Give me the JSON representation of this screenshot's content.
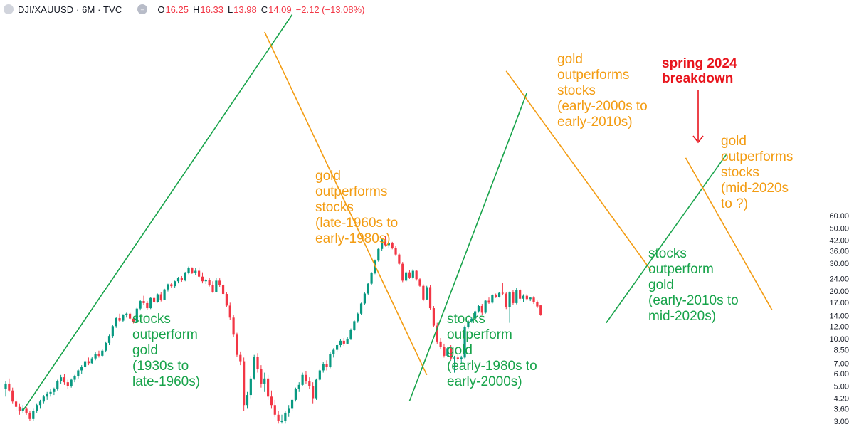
{
  "header": {
    "symbol": "DJI/XAUUSD · 6M · TVC",
    "o_label": "O",
    "o_value": "16.25",
    "h_label": "H",
    "h_value": "16.33",
    "l_label": "L",
    "l_value": "13.98",
    "c_label": "C",
    "c_value": "14.09",
    "change": "−2.12 (−13.08%)"
  },
  "chart_data": {
    "type": "candlestick",
    "title": "DJI/XAUUSD · 6M · TVC",
    "y_scale": "log",
    "ylim": [
      2.9,
      62
    ],
    "y_ticks": [
      "60.00",
      "50.00",
      "42.00",
      "36.00",
      "30.00",
      "24.00",
      "20.00",
      "17.00",
      "14.00",
      "12.00",
      "10.00",
      "8.50",
      "7.00",
      "6.00",
      "5.00",
      "4.20",
      "3.60",
      "3.00"
    ],
    "colors": {
      "up": "#089981",
      "down": "#f23645",
      "orange": "#f39c12",
      "green": "#17a34a",
      "red": "#e8141c"
    },
    "candles": [
      [
        4.8,
        5.4,
        4.3,
        5.2
      ],
      [
        5.2,
        5.6,
        4.6,
        4.7
      ],
      [
        4.7,
        4.9,
        3.9,
        4.0
      ],
      [
        4.0,
        4.2,
        3.5,
        3.7
      ],
      [
        3.7,
        3.9,
        3.3,
        3.5
      ],
      [
        3.5,
        3.8,
        3.4,
        3.6
      ],
      [
        3.6,
        3.7,
        3.3,
        3.4
      ],
      [
        3.4,
        3.5,
        3.0,
        3.1
      ],
      [
        3.1,
        3.6,
        3.0,
        3.5
      ],
      [
        3.5,
        3.9,
        3.4,
        3.8
      ],
      [
        3.8,
        4.1,
        3.6,
        4.0
      ],
      [
        4.0,
        4.4,
        3.9,
        4.3
      ],
      [
        4.3,
        4.6,
        4.1,
        4.5
      ],
      [
        4.5,
        4.8,
        4.3,
        4.6
      ],
      [
        4.6,
        4.9,
        4.4,
        4.8
      ],
      [
        4.8,
        5.5,
        4.7,
        5.4
      ],
      [
        5.4,
        5.9,
        5.2,
        5.7
      ],
      [
        5.7,
        6.0,
        5.1,
        5.3
      ],
      [
        5.3,
        5.5,
        4.8,
        5.0
      ],
      [
        5.0,
        5.6,
        4.9,
        5.5
      ],
      [
        5.5,
        5.9,
        5.3,
        5.8
      ],
      [
        5.8,
        6.4,
        5.6,
        6.3
      ],
      [
        6.3,
        6.8,
        6.0,
        6.6
      ],
      [
        6.6,
        7.3,
        6.4,
        7.2
      ],
      [
        7.2,
        7.6,
        6.8,
        7.0
      ],
      [
        7.0,
        7.7,
        6.9,
        7.5
      ],
      [
        7.5,
        8.2,
        7.3,
        8.0
      ],
      [
        8.0,
        8.4,
        7.6,
        7.8
      ],
      [
        7.8,
        8.6,
        7.7,
        8.4
      ],
      [
        8.4,
        9.6,
        8.2,
        9.4
      ],
      [
        9.4,
        10.6,
        9.1,
        10.4
      ],
      [
        10.4,
        12.2,
        10.1,
        12.0
      ],
      [
        12.0,
        13.7,
        11.7,
        13.5
      ],
      [
        13.5,
        14.4,
        12.7,
        13.0
      ],
      [
        13.0,
        14.3,
        12.7,
        14.1
      ],
      [
        14.1,
        14.6,
        13.6,
        14.4
      ],
      [
        14.4,
        14.7,
        13.1,
        13.4
      ],
      [
        13.4,
        13.6,
        12.5,
        12.8
      ],
      [
        12.8,
        15.7,
        12.7,
        15.5
      ],
      [
        15.5,
        17.6,
        15.1,
        17.3
      ],
      [
        17.3,
        18.7,
        16.4,
        16.8
      ],
      [
        16.8,
        17.3,
        15.3,
        15.6
      ],
      [
        15.6,
        18.3,
        15.4,
        18.1
      ],
      [
        18.1,
        18.4,
        16.8,
        17.1
      ],
      [
        17.1,
        19.3,
        16.9,
        19.1
      ],
      [
        19.1,
        19.8,
        17.2,
        17.6
      ],
      [
        17.6,
        20.7,
        17.5,
        20.5
      ],
      [
        20.5,
        22.3,
        19.9,
        22.1
      ],
      [
        22.1,
        22.6,
        21.1,
        21.5
      ],
      [
        21.5,
        23.3,
        21.0,
        23.1
      ],
      [
        23.1,
        24.6,
        22.4,
        24.3
      ],
      [
        24.3,
        24.9,
        22.9,
        23.5
      ],
      [
        23.5,
        26.5,
        23.1,
        26.2
      ],
      [
        26.2,
        28.6,
        25.6,
        27.9
      ],
      [
        27.9,
        28.3,
        25.7,
        26.2
      ],
      [
        26.2,
        27.9,
        25.4,
        26.9
      ],
      [
        26.9,
        28.3,
        24.3,
        24.7
      ],
      [
        24.7,
        26.3,
        22.4,
        23.1
      ],
      [
        23.1,
        23.9,
        22.2,
        23.4
      ],
      [
        23.4,
        24.2,
        21.4,
        21.8
      ],
      [
        21.8,
        23.1,
        19.5,
        19.8
      ],
      [
        19.8,
        24.2,
        19.6,
        23.3
      ],
      [
        23.3,
        24.1,
        21.3,
        21.8
      ],
      [
        21.8,
        22.3,
        18.7,
        19.2
      ],
      [
        19.2,
        19.8,
        15.8,
        16.2
      ],
      [
        16.2,
        16.9,
        13.2,
        13.6
      ],
      [
        13.6,
        14.1,
        10.3,
        10.6
      ],
      [
        10.6,
        10.9,
        7.7,
        7.9
      ],
      [
        7.9,
        8.3,
        6.8,
        7.2
      ],
      [
        7.2,
        7.6,
        3.5,
        3.8
      ],
      [
        3.8,
        4.6,
        3.6,
        4.4
      ],
      [
        4.4,
        5.8,
        4.2,
        5.6
      ],
      [
        5.6,
        7.9,
        5.5,
        7.7
      ],
      [
        7.7,
        8.1,
        6.1,
        6.4
      ],
      [
        6.4,
        6.8,
        4.9,
        5.2
      ],
      [
        5.2,
        6.1,
        4.6,
        5.6
      ],
      [
        5.6,
        5.9,
        4.1,
        4.3
      ],
      [
        4.3,
        4.7,
        3.6,
        3.8
      ],
      [
        3.8,
        4.1,
        3.2,
        3.3
      ],
      [
        3.3,
        3.5,
        2.9,
        3.0
      ],
      [
        3.0,
        3.3,
        2.9,
        3.0
      ],
      [
        3.0,
        3.5,
        2.9,
        3.4
      ],
      [
        3.4,
        3.8,
        3.2,
        3.6
      ],
      [
        3.6,
        4.2,
        3.5,
        4.1
      ],
      [
        4.1,
        4.9,
        4.0,
        4.8
      ],
      [
        4.8,
        5.3,
        4.6,
        5.1
      ],
      [
        5.1,
        6.1,
        5.0,
        5.9
      ],
      [
        5.9,
        6.2,
        5.2,
        5.4
      ],
      [
        5.4,
        5.7,
        4.8,
        5.0
      ],
      [
        5.0,
        5.3,
        3.9,
        4.2
      ],
      [
        4.2,
        5.6,
        4.1,
        5.5
      ],
      [
        5.5,
        6.4,
        5.4,
        6.3
      ],
      [
        6.3,
        7.1,
        6.1,
        6.9
      ],
      [
        6.9,
        7.3,
        6.3,
        6.6
      ],
      [
        6.6,
        8.2,
        6.5,
        8.0
      ],
      [
        8.0,
        8.7,
        7.6,
        8.5
      ],
      [
        8.5,
        9.3,
        8.3,
        9.1
      ],
      [
        9.1,
        9.9,
        8.8,
        9.7
      ],
      [
        9.7,
        10.1,
        9.0,
        9.3
      ],
      [
        9.3,
        10.2,
        9.2,
        10.0
      ],
      [
        10.0,
        11.6,
        9.8,
        11.4
      ],
      [
        11.4,
        13.1,
        11.2,
        12.9
      ],
      [
        12.9,
        14.6,
        12.6,
        14.4
      ],
      [
        14.4,
        16.9,
        14.1,
        16.7
      ],
      [
        16.7,
        19.6,
        16.3,
        19.3
      ],
      [
        19.3,
        22.6,
        18.9,
        22.3
      ],
      [
        22.3,
        26.4,
        21.9,
        26.0
      ],
      [
        26.0,
        31.7,
        25.6,
        31.2
      ],
      [
        31.2,
        37.6,
        30.7,
        37.0
      ],
      [
        37.0,
        43.0,
        36.1,
        42.5
      ],
      [
        42.5,
        44.5,
        38.3,
        39.1
      ],
      [
        39.1,
        42.1,
        37.4,
        40.3
      ],
      [
        40.3,
        41.0,
        36.8,
        37.6
      ],
      [
        37.6,
        38.6,
        33.4,
        34.1
      ],
      [
        34.1,
        34.6,
        29.3,
        29.8
      ],
      [
        29.8,
        30.6,
        22.8,
        23.3
      ],
      [
        23.3,
        26.8,
        22.9,
        26.3
      ],
      [
        26.3,
        27.1,
        23.9,
        24.4
      ],
      [
        24.4,
        27.6,
        23.8,
        26.9
      ],
      [
        26.9,
        27.3,
        23.3,
        23.8
      ],
      [
        23.8,
        24.3,
        21.3,
        21.6
      ],
      [
        21.6,
        22.1,
        17.3,
        17.7
      ],
      [
        17.7,
        21.6,
        17.5,
        21.2
      ],
      [
        21.2,
        21.9,
        15.3,
        15.6
      ],
      [
        15.6,
        16.1,
        11.8,
        12.1
      ],
      [
        12.1,
        12.6,
        9.3,
        9.6
      ],
      [
        9.6,
        10.1,
        8.6,
        8.9
      ],
      [
        8.9,
        9.3,
        7.6,
        7.8
      ],
      [
        7.8,
        8.9,
        7.7,
        8.7
      ],
      [
        8.7,
        9.1,
        7.3,
        7.5
      ],
      [
        7.5,
        7.8,
        6.1,
        7.6
      ],
      [
        7.6,
        8.0,
        7.2,
        7.4
      ],
      [
        7.4,
        7.8,
        7.0,
        7.6
      ],
      [
        7.6,
        12.1,
        7.5,
        11.9
      ],
      [
        11.9,
        13.1,
        11.6,
        12.9
      ],
      [
        12.9,
        13.7,
        12.6,
        13.4
      ],
      [
        13.4,
        15.1,
        13.1,
        14.9
      ],
      [
        14.9,
        16.3,
        14.6,
        16.1
      ],
      [
        16.1,
        16.6,
        14.2,
        14.6
      ],
      [
        14.6,
        17.6,
        14.4,
        17.4
      ],
      [
        17.4,
        18.2,
        16.6,
        16.9
      ],
      [
        16.9,
        19.1,
        16.7,
        18.9
      ],
      [
        18.9,
        19.3,
        18.1,
        18.4
      ],
      [
        18.4,
        19.8,
        18.2,
        19.5
      ],
      [
        19.5,
        22.6,
        18.8,
        19.3
      ],
      [
        19.3,
        19.7,
        15.4,
        15.8
      ],
      [
        15.8,
        19.9,
        12.6,
        19.6
      ],
      [
        19.6,
        20.3,
        16.4,
        16.8
      ],
      [
        16.8,
        20.9,
        16.5,
        20.4
      ],
      [
        20.4,
        20.7,
        17.4,
        17.9
      ],
      [
        17.9,
        19.1,
        17.1,
        18.7
      ],
      [
        18.7,
        19.2,
        17.4,
        17.8
      ],
      [
        17.8,
        18.4,
        17.3,
        18.2
      ],
      [
        18.2,
        18.6,
        16.6,
        17.0
      ],
      [
        17.0,
        17.4,
        15.6,
        16.0
      ],
      [
        16.25,
        16.33,
        13.98,
        14.09
      ]
    ],
    "trendlines": [
      {
        "color": "green",
        "points": [
          [
            5.2,
            4
          ],
          [
            83,
            95
          ]
        ]
      },
      {
        "color": "orange",
        "points": [
          [
            75,
            91
          ],
          [
            122,
            12
          ]
        ]
      },
      {
        "color": "green",
        "points": [
          [
            117,
            6
          ],
          [
            151,
            77
          ]
        ]
      },
      {
        "color": "orange",
        "points": [
          [
            145,
            82
          ],
          [
            187,
            36
          ]
        ]
      },
      {
        "color": "green",
        "points": [
          [
            174,
            24
          ],
          [
            209,
            63
          ]
        ]
      },
      {
        "color": "orange",
        "points": [
          [
            197,
            62
          ],
          [
            222,
            27
          ]
        ]
      }
    ],
    "annotations": [
      {
        "text": "stocks\noutperform\ngold\n(1930s to\nlate-1960s)",
        "color": "green"
      },
      {
        "text": "gold\noutperforms\nstocks\n(late-1960s to\nearly-1980s)",
        "color": "orange"
      },
      {
        "text": "stocks\noutperform\ngold\n(early-1980s to\nearly-2000s)",
        "color": "green"
      },
      {
        "text": "gold\noutperforms\nstocks\n(early-2000s to\nearly-2010s)",
        "color": "orange"
      },
      {
        "text": "spring 2024\nbreakdown",
        "color": "red"
      },
      {
        "text": "gold\noutperforms\nstocks\n(mid-2020s\nto ?)",
        "color": "orange"
      },
      {
        "text": "stocks\noutperform\ngold\n(early-2010s to\nmid-2020s)",
        "color": "green"
      }
    ]
  }
}
